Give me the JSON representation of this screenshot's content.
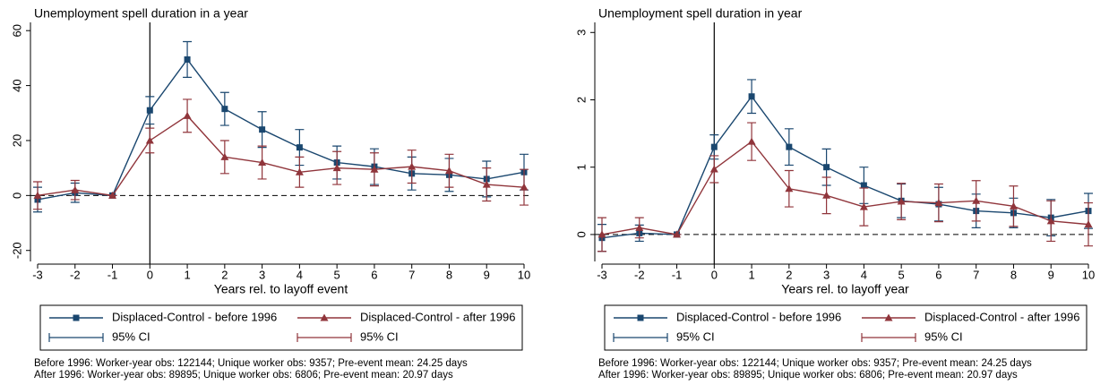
{
  "chart_data": [
    {
      "type": "line",
      "title": "Unemployment spell duration in a year",
      "xlabel": "Years rel. to layoff event",
      "x": [
        -3,
        -2,
        -1,
        0,
        1,
        2,
        3,
        4,
        5,
        6,
        7,
        8,
        9,
        10
      ],
      "xlim": [
        -3,
        10
      ],
      "xticks": [
        -3,
        -2,
        -1,
        0,
        1,
        2,
        3,
        4,
        5,
        6,
        7,
        8,
        9,
        10
      ],
      "ylim": [
        -24,
        63
      ],
      "yticks": [
        -20,
        0,
        20,
        40,
        60
      ],
      "vline": 0,
      "hline": 0,
      "series": [
        {
          "name": "Displaced-Control - before 1996",
          "ci_name": "95% CI",
          "color": "#1a476f",
          "marker": "square",
          "values": [
            -1.5,
            1,
            0,
            31,
            49.5,
            31.5,
            24,
            17.5,
            12,
            10.5,
            8,
            7.5,
            6,
            8.5
          ],
          "errors": [
            4.5,
            3.5,
            0,
            5,
            6.5,
            6,
            6.5,
            6.5,
            6,
            6.5,
            6,
            6,
            6.5,
            6.5
          ]
        },
        {
          "name": "Displaced-Control - after 1996",
          "ci_name": "95% CI",
          "color": "#90353b",
          "marker": "triangle",
          "values": [
            0,
            2,
            0,
            20,
            29,
            14,
            12,
            8.5,
            10,
            9.5,
            10.5,
            9,
            4,
            3
          ],
          "errors": [
            5,
            3.5,
            0,
            4.5,
            6,
            6,
            6,
            5.5,
            6,
            6,
            6,
            6,
            6,
            6.5
          ]
        }
      ],
      "notes": [
        "Before 1996: Worker-year obs: 122144; Unique worker obs: 9357; Pre-event mean: 24.25 days",
        "After 1996: Worker-year obs: 89895; Unique worker obs: 6806; Pre-event mean: 20.97 days"
      ]
    },
    {
      "type": "line",
      "title": "Unemployment spell duration in year",
      "xlabel": "Years rel. to layoff year",
      "x": [
        -3,
        -2,
        -1,
        0,
        1,
        2,
        3,
        4,
        5,
        6,
        7,
        8,
        9,
        10
      ],
      "xlim": [
        -3,
        10
      ],
      "xticks": [
        -3,
        -2,
        -1,
        0,
        1,
        2,
        3,
        4,
        5,
        6,
        7,
        8,
        9,
        10
      ],
      "ylim": [
        -0.4,
        3.15
      ],
      "yticks": [
        0,
        1,
        2,
        3
      ],
      "vline": 0,
      "hline": 0,
      "series": [
        {
          "name": "Displaced-Control - before 1996",
          "ci_name": "95% CI",
          "color": "#1a476f",
          "marker": "square",
          "values": [
            -0.05,
            0.02,
            0,
            1.3,
            2.05,
            1.3,
            1.0,
            0.73,
            0.5,
            0.45,
            0.35,
            0.32,
            0.25,
            0.35
          ],
          "errors": [
            0.2,
            0.12,
            0,
            0.18,
            0.25,
            0.27,
            0.27,
            0.27,
            0.25,
            0.25,
            0.25,
            0.22,
            0.27,
            0.26
          ]
        },
        {
          "name": "Displaced-Control - after 1996",
          "ci_name": "95% CI",
          "color": "#90353b",
          "marker": "triangle",
          "values": [
            0,
            0.1,
            0,
            0.97,
            1.38,
            0.68,
            0.58,
            0.41,
            0.49,
            0.47,
            0.5,
            0.42,
            0.2,
            0.15
          ],
          "errors": [
            0.25,
            0.15,
            0,
            0.2,
            0.28,
            0.27,
            0.27,
            0.28,
            0.27,
            0.28,
            0.3,
            0.3,
            0.3,
            0.32
          ]
        }
      ],
      "notes": [
        "Before 1996: Worker-year obs: 122144; Unique worker obs: 9357; Pre-event mean: 24.25 days",
        "After 1996: Worker-year obs: 89895; Unique worker obs: 6806; Pre-event mean: 20.97 days"
      ]
    }
  ]
}
